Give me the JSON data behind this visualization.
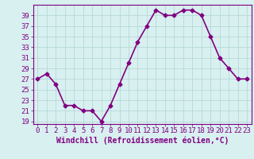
{
  "x": [
    0,
    1,
    2,
    3,
    4,
    5,
    6,
    7,
    8,
    9,
    10,
    11,
    12,
    13,
    14,
    15,
    16,
    17,
    18,
    19,
    20,
    21,
    22,
    23
  ],
  "y": [
    27,
    28,
    26,
    22,
    22,
    21,
    21,
    19,
    22,
    26,
    30,
    34,
    37,
    40,
    39,
    39,
    40,
    40,
    39,
    35,
    31,
    29,
    27,
    27
  ],
  "line_color": "#800080",
  "marker": "D",
  "marker_size": 2.5,
  "bg_color": "#d8f0f0",
  "grid_color": "#b8d8d8",
  "xlabel": "Windchill (Refroidissement éolien,°C)",
  "xlabel_fontsize": 7,
  "yticks": [
    19,
    21,
    23,
    25,
    27,
    29,
    31,
    33,
    35,
    37,
    39
  ],
  "xticks": [
    0,
    1,
    2,
    3,
    4,
    5,
    6,
    7,
    8,
    9,
    10,
    11,
    12,
    13,
    14,
    15,
    16,
    17,
    18,
    19,
    20,
    21,
    22,
    23
  ],
  "ylim": [
    18.5,
    41.0
  ],
  "xlim": [
    -0.5,
    23.5
  ],
  "tick_color": "#800080",
  "tick_fontsize": 6.5,
  "spine_color": "#800080",
  "linewidth": 1.2
}
